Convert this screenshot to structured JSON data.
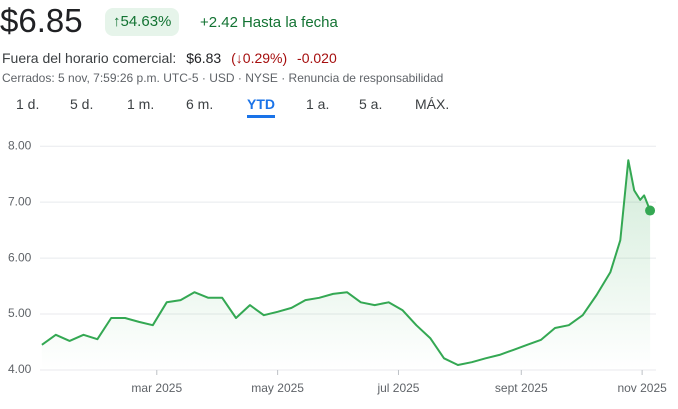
{
  "header": {
    "price": "$6.85",
    "change_pct": "↑54.63%",
    "change": "+2.42",
    "period": "Hasta la fecha"
  },
  "after_hours": {
    "label": "Fuera del horario comercial:",
    "price": "$6.83",
    "change_pct": "(↓0.29%)",
    "change": "-0.020"
  },
  "status": "Cerrados: 5 nov, 7:59:26 p.m. UTC-5 · USD · NYSE · Renuncia de responsabilidad",
  "tabs": [
    "1 d.",
    "5 d.",
    "1 m.",
    "6 m.",
    "YTD",
    "1 a.",
    "5 a.",
    "MÁX."
  ],
  "selected_tab": "YTD",
  "chart_data": {
    "type": "line",
    "color": "#34a853",
    "grid": true,
    "x": [
      2,
      9,
      16,
      23,
      30,
      37,
      44,
      51,
      58,
      65,
      72,
      79,
      86,
      93,
      100,
      107,
      114,
      121,
      128,
      135,
      142,
      149,
      156,
      163,
      170,
      177,
      184,
      191,
      198,
      205,
      212,
      219,
      226,
      233,
      240,
      247,
      254,
      261,
      268,
      275,
      282,
      289,
      294,
      298,
      301,
      304,
      306,
      309
    ],
    "values": [
      4.45,
      4.63,
      4.52,
      4.63,
      4.55,
      4.93,
      4.93,
      4.86,
      4.8,
      5.21,
      5.25,
      5.39,
      5.29,
      5.29,
      4.93,
      5.16,
      4.98,
      5.04,
      5.11,
      5.25,
      5.29,
      5.36,
      5.39,
      5.21,
      5.16,
      5.21,
      5.07,
      4.8,
      4.57,
      4.21,
      4.09,
      4.14,
      4.21,
      4.27,
      4.36,
      4.45,
      4.54,
      4.75,
      4.8,
      4.98,
      5.34,
      5.75,
      6.32,
      7.75,
      7.21,
      7.04,
      7.12,
      6.85
    ],
    "xlim": [
      -4,
      312
    ],
    "xticks": [
      {
        "value": 60,
        "label": "mar 2025"
      },
      {
        "value": 121,
        "label": "may 2025"
      },
      {
        "value": 182,
        "label": "jul 2025"
      },
      {
        "value": 244,
        "label": "sept 2025"
      },
      {
        "value": 305,
        "label": "nov 2025"
      }
    ],
    "ylim": [
      4,
      8.2
    ],
    "yticks": [
      {
        "value": 4,
        "label": "4.00"
      },
      {
        "value": 5,
        "label": "5.00"
      },
      {
        "value": 6,
        "label": "6.00"
      },
      {
        "value": 7,
        "label": "7.00"
      },
      {
        "value": 8,
        "label": "8.00"
      }
    ]
  }
}
